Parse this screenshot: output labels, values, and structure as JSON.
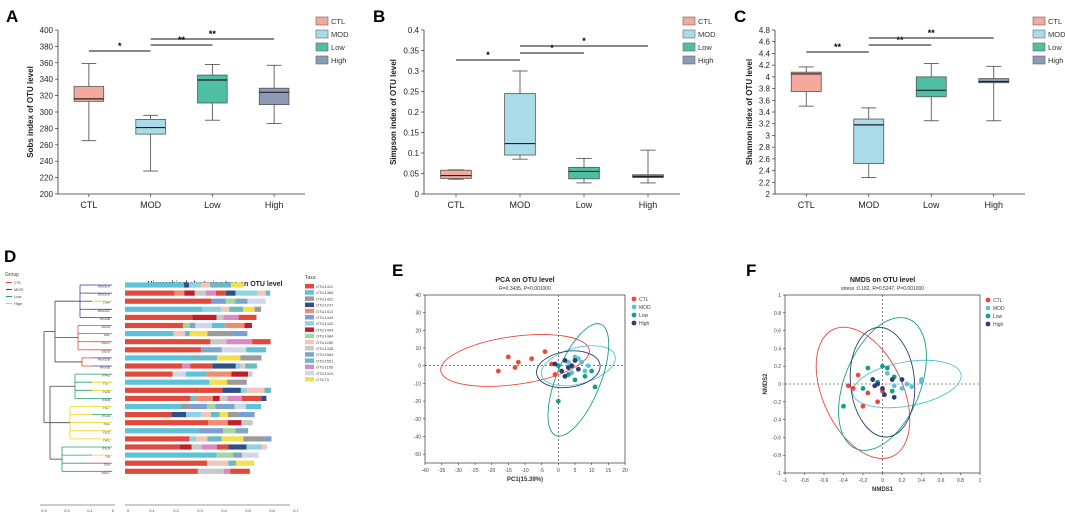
{
  "colors": {
    "CTL": "#f4a99d",
    "MOD": "#a9dce8",
    "Low": "#4fbfa3",
    "High": "#8d9ab6",
    "dotCTL": "#e8493c",
    "dotMOD": "#57c3d9",
    "dotLow": "#16a083",
    "dotHigh": "#2b3f76"
  },
  "panel_labels": [
    "A",
    "B",
    "C",
    "D",
    "E",
    "F"
  ],
  "chart_data": [
    {
      "id": "A",
      "type": "box",
      "ylabel": "Sobs index of OTU level",
      "categories": [
        "CTL",
        "MOD",
        "Low",
        "High"
      ],
      "ylim": [
        200,
        400
      ],
      "yticks": [
        200,
        220,
        240,
        260,
        280,
        300,
        320,
        340,
        360,
        380,
        400
      ],
      "boxes": [
        {
          "min": 265,
          "q1": 313,
          "med": 316,
          "q3": 331,
          "max": 359
        },
        {
          "min": 228,
          "q1": 273,
          "med": 281,
          "q3": 291,
          "max": 296
        },
        {
          "min": 290,
          "q1": 311,
          "med": 339,
          "q3": 345,
          "max": 358
        },
        {
          "min": 286,
          "q1": 309,
          "med": 324,
          "q3": 329,
          "max": 357
        }
      ],
      "sig": [
        {
          "from": 0,
          "to": 1,
          "label": "*"
        },
        {
          "from": 1,
          "to": 2,
          "label": "**"
        },
        {
          "from": 1,
          "to": 3,
          "label": "**"
        }
      ],
      "legend": [
        "CTL",
        "MOD",
        "Low",
        "High"
      ]
    },
    {
      "id": "B",
      "type": "box",
      "ylabel": "Simpson index of OTU level",
      "categories": [
        "CTL",
        "MOD",
        "Low",
        "High"
      ],
      "ylim": [
        0,
        0.4
      ],
      "yticks": [
        "0",
        "0.05",
        "0.1",
        "0.15",
        "0.2",
        "0.25",
        "0.3",
        "0.35",
        "0.4"
      ],
      "boxes": [
        {
          "min": 0.036,
          "q1": 0.038,
          "med": 0.045,
          "q3": 0.058,
          "max": 0.059
        },
        {
          "min": 0.085,
          "q1": 0.095,
          "med": 0.123,
          "q3": 0.245,
          "max": 0.3
        },
        {
          "min": 0.027,
          "q1": 0.037,
          "med": 0.055,
          "q3": 0.065,
          "max": 0.087
        },
        {
          "min": 0.027,
          "q1": 0.04,
          "med": 0.043,
          "q3": 0.047,
          "max": 0.107
        }
      ],
      "sig": [
        {
          "from": 0,
          "to": 1,
          "label": "*"
        },
        {
          "from": 1,
          "to": 2,
          "label": "*"
        },
        {
          "from": 1,
          "to": 3,
          "label": "*"
        }
      ],
      "legend": [
        "CTL",
        "MOD",
        "Low",
        "High"
      ]
    },
    {
      "id": "C",
      "type": "box",
      "ylabel": "Shannon index of OTU level",
      "categories": [
        "CTL",
        "MOD",
        "Low",
        "High"
      ],
      "ylim": [
        2,
        4.8
      ],
      "yticks": [
        "2",
        "2.2",
        "2.4",
        "2.6",
        "2.8",
        "3",
        "3.2",
        "3.4",
        "3.6",
        "3.8",
        "4",
        "4.2",
        "4.4",
        "4.6",
        "4.8"
      ],
      "boxes": [
        {
          "min": 3.5,
          "q1": 3.75,
          "med": 4.05,
          "q3": 4.08,
          "max": 4.17
        },
        {
          "min": 2.28,
          "q1": 2.52,
          "med": 3.18,
          "q3": 3.28,
          "max": 3.47
        },
        {
          "min": 3.25,
          "q1": 3.66,
          "med": 3.77,
          "q3": 4.0,
          "max": 4.23
        },
        {
          "min": 3.25,
          "q1": 3.9,
          "med": 3.92,
          "q3": 3.97,
          "max": 4.18
        }
      ],
      "sig": [
        {
          "from": 0,
          "to": 1,
          "label": "**"
        },
        {
          "from": 1,
          "to": 2,
          "label": "**"
        },
        {
          "from": 1,
          "to": 3,
          "label": "**"
        }
      ],
      "legend": [
        "CTL",
        "MOD",
        "Low",
        "High"
      ]
    },
    {
      "id": "D",
      "type": "stacked-bar-dendrogram",
      "title": "Hierarchical clustering tree on OTU level",
      "group_legend_title": "Group",
      "groups": [
        "CTL",
        "MOD",
        "Low",
        "High"
      ],
      "taxa_title": "Taxa",
      "taxa": [
        "OTU1411",
        "OTU1465",
        "OTU1422",
        "OTU1247",
        "OTU1412",
        "OTU1444",
        "OTU1442",
        "OTU1404",
        "OTU1484",
        "OTU1280",
        "OTU1438",
        "OTU1584",
        "OTU1551",
        "OTU1156",
        "OTU1310",
        "OTU73"
      ],
      "taxa_colors": [
        "#e04a3c",
        "#5fc3d8",
        "#9b9b9b",
        "#2f4f86",
        "#f08c6f",
        "#7aa0d2",
        "#8ed2e3",
        "#bf1e2d",
        "#a3d6a0",
        "#f3c6b8",
        "#c8c8c8",
        "#7fa6c9",
        "#6bb9c6",
        "#d989c4",
        "#cfd7e9",
        "#f4e04d"
      ],
      "samples": [
        "mod14",
        "mod29",
        "h34",
        "mod31",
        "mod8",
        "ctl33",
        "ctl1",
        "ctl21",
        "ctl25",
        "mod28",
        "mod6",
        "m43",
        "h27",
        "h26",
        "m48",
        "h17",
        "m35",
        "h11",
        "h22",
        "h41",
        "m19",
        "h8",
        "ctl3",
        "ctl37"
      ],
      "sample_groups": [
        "MOD",
        "MOD",
        "High",
        "MOD",
        "MOD",
        "CTL",
        "CTL",
        "CTL",
        "CTL",
        "MOD",
        "MOD",
        "Low",
        "High",
        "High",
        "Low",
        "High",
        "Low",
        "High",
        "High",
        "High",
        "Low",
        "High",
        "CTL",
        "CTL"
      ],
      "xticks": [
        "0.3",
        "0.2",
        "0.1",
        "0",
        "0",
        "0.1",
        "0.2",
        "0.3",
        "0.4",
        "0.5",
        "0.6",
        "0.7"
      ]
    },
    {
      "id": "E",
      "type": "scatter",
      "title": "PCA on OTU level",
      "subtitle": "R=0.3435, P=0.001000",
      "xlabel": "PC1(15.39%)",
      "ylabel": "",
      "xlim": [
        -40,
        20
      ],
      "ylim": [
        -55,
        40
      ],
      "xticks": [
        -40,
        -35,
        -30,
        -25,
        -20,
        -15,
        -10,
        -5,
        0,
        5,
        10,
        15,
        20
      ],
      "yticks": [
        -50,
        -40,
        -30,
        -20,
        -10,
        0,
        10,
        20,
        30,
        40
      ],
      "series": [
        {
          "name": "CTL",
          "points": [
            [
              -18,
              -3
            ],
            [
              -15,
              5
            ],
            [
              -12,
              2
            ],
            [
              -13,
              -1
            ],
            [
              -8,
              4
            ],
            [
              -4,
              8
            ],
            [
              -2,
              1
            ],
            [
              -1,
              -5
            ]
          ]
        },
        {
          "name": "MOD",
          "points": [
            [
              4,
              0
            ],
            [
              5,
              5
            ],
            [
              7,
              2
            ],
            [
              8,
              -3
            ],
            [
              6,
              4
            ],
            [
              9,
              0
            ],
            [
              4,
              -4
            ],
            [
              3,
              2
            ]
          ]
        },
        {
          "name": "Low",
          "points": [
            [
              0,
              0
            ],
            [
              3,
              -5
            ],
            [
              5,
              -8
            ],
            [
              8,
              -6
            ],
            [
              11,
              -12
            ],
            [
              10,
              -3
            ],
            [
              0,
              -20
            ]
          ]
        },
        {
          "name": "High",
          "points": [
            [
              1,
              -3
            ],
            [
              2,
              3
            ],
            [
              3,
              -1
            ],
            [
              4,
              0
            ],
            [
              6,
              -2
            ],
            [
              5,
              3
            ],
            [
              -1,
              1
            ],
            [
              2,
              -6
            ]
          ]
        }
      ],
      "legend": [
        "CTL",
        "MOD",
        "Low",
        "High"
      ]
    },
    {
      "id": "F",
      "type": "scatter",
      "title": "NMDS on OTU level",
      "subtitle": "stress :0.182, R=0.5247, P=0.001000",
      "xlabel": "NMDS1",
      "ylabel": "NMDS2",
      "xlim": [
        -1,
        1
      ],
      "ylim": [
        -1,
        1
      ],
      "xticks": [
        "-1",
        "-0.8",
        "-0.6",
        "-0.4",
        "-0.2",
        "0",
        "0.2",
        "0.4",
        "0.6",
        "0.8",
        "1"
      ],
      "yticks": [
        "-1",
        "-0.8",
        "-0.6",
        "-0.4",
        "-0.2",
        "0",
        "0.2",
        "0.4",
        "0.6",
        "0.8",
        "1"
      ],
      "series": [
        {
          "name": "CTL",
          "points": [
            [
              -0.35,
              -0.02
            ],
            [
              -0.25,
              0.1
            ],
            [
              -0.15,
              -0.1
            ],
            [
              -0.05,
              -0.2
            ],
            [
              0.0,
              -0.08
            ],
            [
              -0.3,
              -0.05
            ],
            [
              -0.1,
              0.05
            ],
            [
              -0.2,
              -0.25
            ]
          ]
        },
        {
          "name": "MOD",
          "points": [
            [
              0.4,
              0.02
            ],
            [
              0.4,
              0.05
            ],
            [
              0.2,
              -0.05
            ],
            [
              0.25,
              0.0
            ],
            [
              0.05,
              0.12
            ],
            [
              0.3,
              -0.03
            ],
            [
              0.12,
              -0.02
            ]
          ]
        },
        {
          "name": "Low",
          "points": [
            [
              0.0,
              0.2
            ],
            [
              0.05,
              0.18
            ],
            [
              -0.2,
              -0.05
            ],
            [
              0.12,
              0.08
            ],
            [
              -0.15,
              0.18
            ],
            [
              -0.05,
              0.02
            ],
            [
              -0.4,
              -0.25
            ],
            [
              0.1,
              -0.08
            ]
          ]
        },
        {
          "name": "High",
          "points": [
            [
              -0.1,
              0.05
            ],
            [
              0.0,
              -0.05
            ],
            [
              0.1,
              0.05
            ],
            [
              -0.08,
              -0.02
            ],
            [
              0.2,
              0.05
            ],
            [
              0.02,
              -0.12
            ],
            [
              -0.05,
              0.0
            ],
            [
              0.12,
              -0.15
            ]
          ]
        }
      ],
      "legend": [
        "CTL",
        "MOD",
        "Low",
        "High"
      ]
    }
  ]
}
